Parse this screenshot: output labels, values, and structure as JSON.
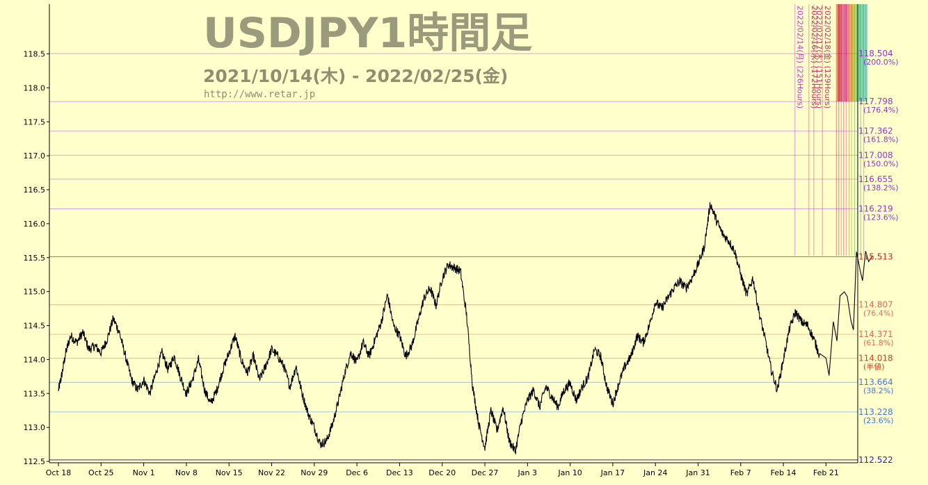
{
  "chart_data": {
    "type": "line",
    "title": "USDJPY1時間足",
    "subtitle": "2021/10/14(木) - 2022/02/25(金)",
    "source": "http://www.retar.jp",
    "ylim": [
      112.5,
      118.7
    ],
    "y_ticks": [
      "112.5",
      "113.0",
      "113.5",
      "114.0",
      "114.5",
      "115.0",
      "115.5",
      "116.0",
      "116.5",
      "117.0",
      "117.5",
      "118.0",
      "118.5"
    ],
    "x_ticks": [
      "Oct 18",
      "Oct 25",
      "Nov 1",
      "Nov 8",
      "Nov 15",
      "Nov 22",
      "Nov 29",
      "Dec 6",
      "Dec 13",
      "Dec 20",
      "Dec 27",
      "Jan 3",
      "Jan 10",
      "Jan 17",
      "Jan 24",
      "Jan 31",
      "Feb 7",
      "Feb 14",
      "Feb 21"
    ],
    "x_tick_index": [
      0,
      7,
      14,
      21,
      28,
      35,
      42,
      49,
      56,
      63,
      70,
      77,
      84,
      91,
      98,
      105,
      112,
      119,
      126
    ],
    "days_span": 134.5,
    "keypoints": [
      [
        0,
        113.55
      ],
      [
        0.5,
        113.75
      ],
      [
        1.2,
        114.1
      ],
      [
        2,
        114.35
      ],
      [
        3,
        114.25
      ],
      [
        4,
        114.4
      ],
      [
        5,
        114.15
      ],
      [
        6,
        114.2
      ],
      [
        7,
        114.1
      ],
      [
        8,
        114.3
      ],
      [
        9,
        114.6
      ],
      [
        10,
        114.4
      ],
      [
        11,
        114.05
      ],
      [
        12,
        113.7
      ],
      [
        13,
        113.55
      ],
      [
        14,
        113.7
      ],
      [
        15,
        113.5
      ],
      [
        16,
        113.8
      ],
      [
        17,
        114.1
      ],
      [
        18,
        113.85
      ],
      [
        19,
        114.05
      ],
      [
        20,
        113.75
      ],
      [
        21,
        113.5
      ],
      [
        22,
        113.7
      ],
      [
        23,
        114.0
      ],
      [
        24,
        113.55
      ],
      [
        25,
        113.35
      ],
      [
        26,
        113.55
      ],
      [
        27,
        113.85
      ],
      [
        28,
        114.1
      ],
      [
        29,
        114.35
      ],
      [
        30,
        114.0
      ],
      [
        31,
        113.8
      ],
      [
        32,
        114.05
      ],
      [
        33,
        113.7
      ],
      [
        34,
        113.9
      ],
      [
        35,
        114.15
      ],
      [
        36,
        114.05
      ],
      [
        37,
        113.9
      ],
      [
        38,
        113.6
      ],
      [
        39,
        113.9
      ],
      [
        40,
        113.5
      ],
      [
        41,
        113.2
      ],
      [
        42,
        113.0
      ],
      [
        43,
        112.75
      ],
      [
        44,
        112.8
      ],
      [
        45,
        113.05
      ],
      [
        46,
        113.4
      ],
      [
        47,
        113.8
      ],
      [
        48,
        114.1
      ],
      [
        49,
        113.95
      ],
      [
        50,
        114.25
      ],
      [
        51,
        114.05
      ],
      [
        52,
        114.3
      ],
      [
        53,
        114.55
      ],
      [
        54,
        114.95
      ],
      [
        55,
        114.5
      ],
      [
        56,
        114.35
      ],
      [
        57,
        114.05
      ],
      [
        58,
        114.2
      ],
      [
        59,
        114.55
      ],
      [
        60,
        114.9
      ],
      [
        61,
        115.05
      ],
      [
        62,
        114.8
      ],
      [
        63,
        115.2
      ],
      [
        64,
        115.4
      ],
      [
        65,
        115.35
      ],
      [
        66,
        115.3
      ],
      [
        67,
        114.65
      ],
      [
        68,
        113.6
      ],
      [
        69,
        113.05
      ],
      [
        70,
        112.7
      ],
      [
        71,
        113.25
      ],
      [
        72,
        112.95
      ],
      [
        73,
        113.3
      ],
      [
        74,
        112.8
      ],
      [
        75,
        112.65
      ],
      [
        76,
        113.1
      ],
      [
        77,
        113.4
      ],
      [
        78,
        113.55
      ],
      [
        79,
        113.3
      ],
      [
        80,
        113.6
      ],
      [
        81,
        113.45
      ],
      [
        82,
        113.3
      ],
      [
        83,
        113.55
      ],
      [
        84,
        113.65
      ],
      [
        85,
        113.4
      ],
      [
        86,
        113.6
      ],
      [
        87,
        113.75
      ],
      [
        88,
        114.15
      ],
      [
        89,
        114.05
      ],
      [
        90,
        113.6
      ],
      [
        91,
        113.35
      ],
      [
        92,
        113.65
      ],
      [
        93,
        113.9
      ],
      [
        94,
        114.05
      ],
      [
        95,
        114.35
      ],
      [
        96,
        114.25
      ],
      [
        97,
        114.5
      ],
      [
        98,
        114.85
      ],
      [
        99,
        114.75
      ],
      [
        100,
        114.9
      ],
      [
        101,
        115.05
      ],
      [
        102,
        115.15
      ],
      [
        103,
        115.05
      ],
      [
        104,
        115.2
      ],
      [
        105,
        115.4
      ],
      [
        106,
        115.65
      ],
      [
        107,
        116.3
      ],
      [
        108,
        116.05
      ],
      [
        109,
        115.85
      ],
      [
        110,
        115.75
      ],
      [
        111,
        115.6
      ],
      [
        112,
        115.25
      ],
      [
        113,
        114.95
      ],
      [
        114,
        115.2
      ],
      [
        115,
        114.7
      ],
      [
        116,
        114.3
      ],
      [
        117,
        113.85
      ],
      [
        118,
        113.55
      ],
      [
        119,
        114.0
      ],
      [
        120,
        114.45
      ],
      [
        121,
        114.7
      ],
      [
        122,
        114.55
      ],
      [
        123,
        114.5
      ],
      [
        124,
        114.3
      ],
      [
        125,
        114.05
      ]
    ],
    "horizontal_levels": [
      {
        "value": 118.504,
        "label": "118.504",
        "pct": "(200.0%)",
        "color": "#9933cc",
        "line": "#e0a0e0"
      },
      {
        "value": 117.798,
        "label": "117.798",
        "pct": "(176.4%)",
        "color": "#9933cc",
        "line": "#e0a0e0"
      },
      {
        "value": 117.362,
        "label": "117.362",
        "pct": "(161.8%)",
        "color": "#9933cc",
        "line": "#e0a0e0"
      },
      {
        "value": 117.008,
        "label": "117.008",
        "pct": "(150.0%)",
        "color": "#9933cc",
        "line": "#e0a0e0"
      },
      {
        "value": 116.655,
        "label": "116.655",
        "pct": "(138.2%)",
        "color": "#9933cc",
        "line": "#e0a0e0"
      },
      {
        "value": 116.219,
        "label": "116.219",
        "pct": "(123.6%)",
        "color": "#9933cc",
        "line": "#e0a0e0"
      },
      {
        "value": 115.513,
        "label": "115.513",
        "pct": "",
        "color": "#dd2222",
        "line": "#ee5555"
      },
      {
        "value": 114.807,
        "label": "114.807",
        "pct": "(76.4%)",
        "color": "#ee6655",
        "line": "#f0c090"
      },
      {
        "value": 114.371,
        "label": "114.371",
        "pct": "(61.8%)",
        "color": "#ee6655",
        "line": "#f0c090"
      },
      {
        "value": 114.018,
        "label": "114.018",
        "pct": "(半値)",
        "color": "#cc4422",
        "line": "#f0b0a0"
      },
      {
        "value": 113.664,
        "label": "113.664",
        "pct": "(38.2%)",
        "color": "#4477dd",
        "line": "#a0c0e0"
      },
      {
        "value": 113.228,
        "label": "113.228",
        "pct": "(23.6%)",
        "color": "#4477dd",
        "line": "#a0c0e0"
      },
      {
        "value": 112.522,
        "label": "112.522",
        "pct": "",
        "color": "#2222cc",
        "line": "#2222cc"
      }
    ],
    "vertical_markers": [
      {
        "day": 122.6,
        "label": "2022/02/14(月) (226Hours)",
        "color": "#cc33cc"
      },
      {
        "day": 124.9,
        "label": "2022/02/16(水) (172Hours)",
        "color": "#cc3366"
      },
      {
        "day": 125.7,
        "label": "2022/02/17(木) (151Hours)",
        "color": "#cc3366"
      },
      {
        "day": 127.1,
        "label": "2022/02/18(金) (129Hours)",
        "color": "#cc3355"
      },
      {
        "day": 129.4,
        "label": "",
        "color": "#cc0000"
      },
      {
        "day": 129.8,
        "label": "",
        "color": "#cc0033"
      },
      {
        "day": 130.2,
        "label": "",
        "color": "#cc3399"
      },
      {
        "day": 130.6,
        "label": "",
        "color": "#cc0066"
      },
      {
        "day": 131.0,
        "label": "",
        "color": "#dd3366"
      },
      {
        "day": 131.5,
        "label": "",
        "color": "#cc6600"
      },
      {
        "day": 131.9,
        "label": "",
        "color": "#aa9900"
      },
      {
        "day": 132.4,
        "label": "",
        "color": "#33aa33"
      },
      {
        "day": 132.9,
        "label": "",
        "color": "#00aa66"
      },
      {
        "day": 133.4,
        "label": "",
        "color": "#00aa99"
      },
      {
        "day": 133.9,
        "label": "",
        "color": "#00aaaa"
      }
    ]
  }
}
